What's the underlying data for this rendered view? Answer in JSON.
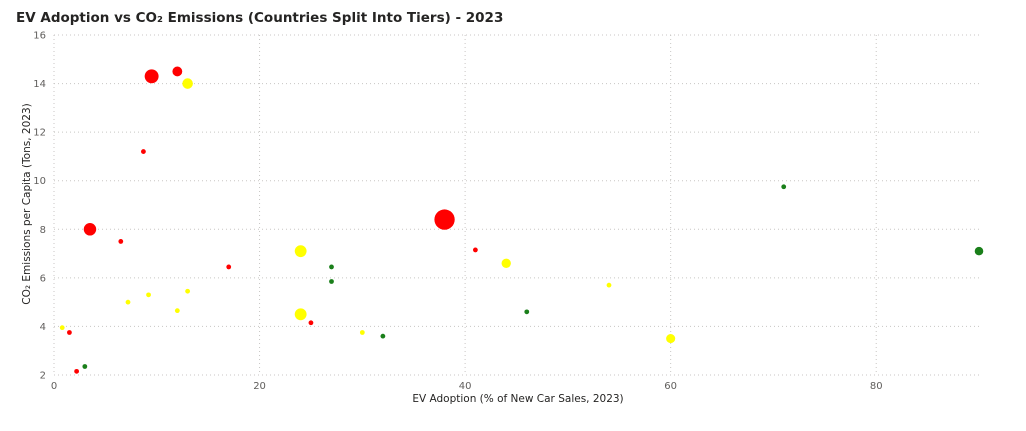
{
  "chart_data": {
    "type": "scatter",
    "title": "EV Adoption vs CO₂ Emissions (Countries Split Into Tiers) - 2023",
    "xlabel": "EV Adoption (% of New Car Sales, 2023)",
    "ylabel": "CO₂ Emissions per Capita (Tons, 2023)",
    "xlim": [
      0,
      90
    ],
    "ylim": [
      2,
      16
    ],
    "xticks": [
      0,
      20,
      40,
      60,
      80
    ],
    "yticks": [
      2,
      4,
      6,
      8,
      10,
      12,
      14,
      16
    ],
    "grid": true,
    "legend": "none",
    "colors": {
      "red": "#ff0000",
      "yellow": "#ffff00",
      "green": "#1a7f1a"
    },
    "points": [
      {
        "x": 9.5,
        "y": 14.3,
        "size": 4,
        "color": "red"
      },
      {
        "x": 12,
        "y": 14.5,
        "size": 2,
        "color": "red"
      },
      {
        "x": 13,
        "y": 14.0,
        "size": 2.3,
        "color": "yellow"
      },
      {
        "x": 8.7,
        "y": 11.2,
        "size": 1,
        "color": "red"
      },
      {
        "x": 3.5,
        "y": 8.0,
        "size": 3.2,
        "color": "red"
      },
      {
        "x": 6.5,
        "y": 7.5,
        "size": 1,
        "color": "red"
      },
      {
        "x": 17,
        "y": 6.45,
        "size": 1,
        "color": "red"
      },
      {
        "x": 38,
        "y": 8.4,
        "size": 8.5,
        "color": "red"
      },
      {
        "x": 41,
        "y": 7.15,
        "size": 1,
        "color": "red"
      },
      {
        "x": 25,
        "y": 4.15,
        "size": 1,
        "color": "red"
      },
      {
        "x": 1.5,
        "y": 3.75,
        "size": 1,
        "color": "red"
      },
      {
        "x": 2.2,
        "y": 2.15,
        "size": 1,
        "color": "red"
      },
      {
        "x": 0.8,
        "y": 3.95,
        "size": 1,
        "color": "yellow"
      },
      {
        "x": 7.2,
        "y": 5.0,
        "size": 1,
        "color": "yellow"
      },
      {
        "x": 9.2,
        "y": 5.3,
        "size": 1,
        "color": "yellow"
      },
      {
        "x": 12,
        "y": 4.65,
        "size": 1,
        "color": "yellow"
      },
      {
        "x": 13,
        "y": 5.45,
        "size": 1,
        "color": "yellow"
      },
      {
        "x": 24,
        "y": 7.1,
        "size": 2.9,
        "color": "yellow"
      },
      {
        "x": 24,
        "y": 4.5,
        "size": 2.9,
        "color": "yellow"
      },
      {
        "x": 30,
        "y": 3.75,
        "size": 1,
        "color": "yellow"
      },
      {
        "x": 44,
        "y": 6.6,
        "size": 1.8,
        "color": "yellow"
      },
      {
        "x": 54,
        "y": 5.7,
        "size": 1,
        "color": "yellow"
      },
      {
        "x": 60,
        "y": 3.5,
        "size": 1.7,
        "color": "yellow"
      },
      {
        "x": 3,
        "y": 2.35,
        "size": 1,
        "color": "green"
      },
      {
        "x": 27,
        "y": 6.45,
        "size": 1,
        "color": "green"
      },
      {
        "x": 27,
        "y": 5.85,
        "size": 1,
        "color": "green"
      },
      {
        "x": 32,
        "y": 3.6,
        "size": 1,
        "color": "green"
      },
      {
        "x": 46,
        "y": 4.6,
        "size": 1,
        "color": "green"
      },
      {
        "x": 71,
        "y": 9.75,
        "size": 1,
        "color": "green"
      },
      {
        "x": 90,
        "y": 7.1,
        "size": 1.5,
        "color": "green"
      }
    ]
  }
}
